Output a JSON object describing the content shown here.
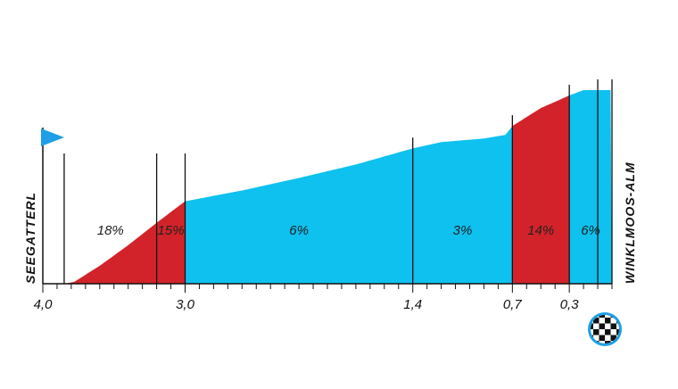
{
  "chart_data": {
    "type": "area",
    "x_axis": {
      "unit": "km to go",
      "direction": "descending",
      "range": [
        4.0,
        0.0
      ],
      "tick_labels": [
        {
          "value": 4.0,
          "label": "4,0"
        },
        {
          "value": 3.0,
          "label": "3,0"
        },
        {
          "value": 1.4,
          "label": "1,4"
        },
        {
          "value": 0.7,
          "label": "0,7"
        },
        {
          "value": 0.3,
          "label": "0,3"
        }
      ],
      "minor_tick_step": 0.1
    },
    "profile": [
      {
        "km": 4.0,
        "alt": 0
      },
      {
        "km": 3.85,
        "alt": 0
      },
      {
        "km": 3.78,
        "alt": 2
      },
      {
        "km": 3.6,
        "alt": 20
      },
      {
        "km": 3.4,
        "alt": 43
      },
      {
        "km": 3.2,
        "alt": 68
      },
      {
        "km": 3.0,
        "alt": 92
      },
      {
        "km": 2.6,
        "alt": 104
      },
      {
        "km": 2.2,
        "alt": 118
      },
      {
        "km": 1.8,
        "alt": 133
      },
      {
        "km": 1.4,
        "alt": 151
      },
      {
        "km": 1.2,
        "alt": 158
      },
      {
        "km": 0.9,
        "alt": 162
      },
      {
        "km": 0.75,
        "alt": 166
      },
      {
        "km": 0.7,
        "alt": 176
      },
      {
        "km": 0.5,
        "alt": 196
      },
      {
        "km": 0.3,
        "alt": 210
      },
      {
        "km": 0.2,
        "alt": 216
      },
      {
        "km": 0.1,
        "alt": 216
      },
      {
        "km": 0.0,
        "alt": 216
      }
    ],
    "alt_max": 216,
    "segments": [
      {
        "from": 3.85,
        "to": 3.2,
        "gradient": "18%",
        "color": "red"
      },
      {
        "from": 3.2,
        "to": 3.0,
        "gradient": "15%",
        "color": "red"
      },
      {
        "from": 3.0,
        "to": 1.4,
        "gradient": "6%",
        "color": "blue"
      },
      {
        "from": 1.4,
        "to": 0.7,
        "gradient": "3%",
        "color": "blue"
      },
      {
        "from": 0.7,
        "to": 0.3,
        "gradient": "14%",
        "color": "red"
      },
      {
        "from": 0.3,
        "to": 0.0,
        "gradient": "6%",
        "color": "blue"
      }
    ],
    "markers_km": [
      3.85,
      3.2,
      3.0,
      1.4,
      0.7,
      0.3,
      0.1,
      0.0
    ],
    "start_label": "SEEGATTERL",
    "finish_label": "WINKLMOOS-ALM",
    "colors": {
      "red": "#d3232a",
      "blue": "#0ec1ef",
      "flag": "#1e9fe6",
      "axis": "#111111"
    },
    "icons": {
      "start": "start-flag-icon",
      "finish": "checkered-finish-icon"
    }
  }
}
